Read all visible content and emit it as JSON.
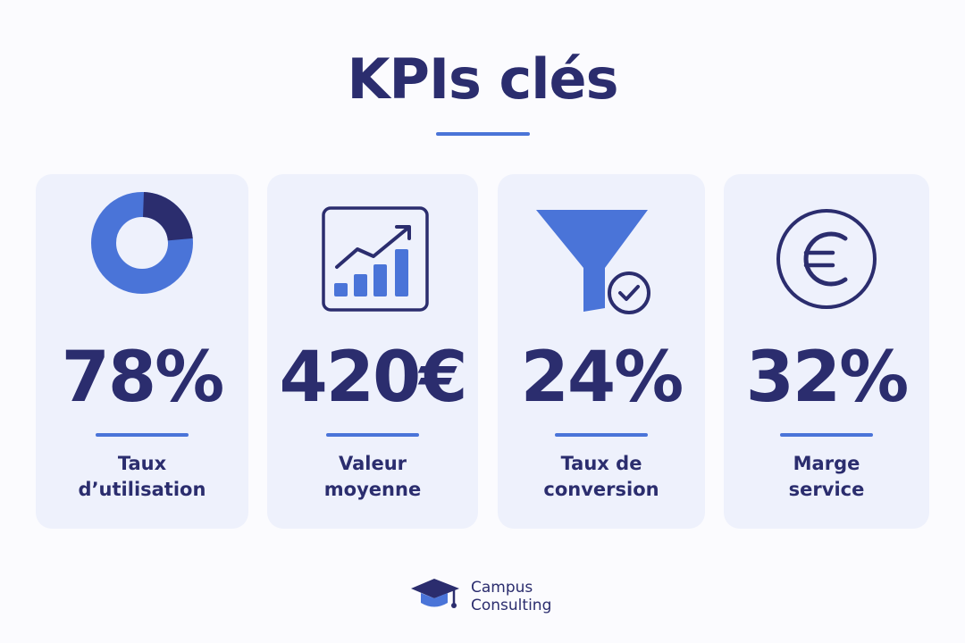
{
  "header": {
    "title": "KPIs clés"
  },
  "cards": [
    {
      "value": "78%",
      "label": [
        "Taux",
        "d’utilisation"
      ]
    },
    {
      "value": "420€",
      "label": [
        "Valeur",
        "moyenne"
      ]
    },
    {
      "value": "24%",
      "label": [
        "Taux de",
        "conversion"
      ]
    },
    {
      "value": "32%",
      "label": [
        "Marge",
        "service"
      ]
    }
  ],
  "footer": {
    "brand": [
      "Campus",
      "Consulting"
    ]
  }
}
